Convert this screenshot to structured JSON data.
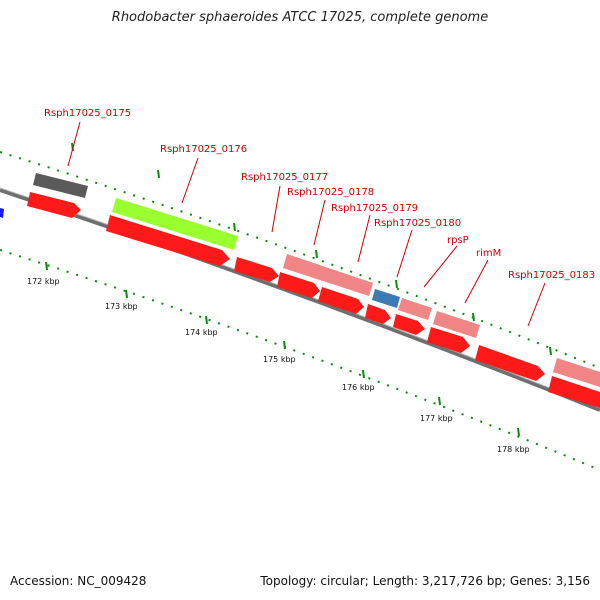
{
  "title": "Rhodobacter sphaeroides ATCC 17025, complete genome",
  "footer": {
    "accession": "Accession: NC_009428",
    "summary": "Topology: circular; Length: 3,217,726 bp; Genes: 3,156"
  },
  "colors": {
    "cds": "#ff1a1a",
    "trna": "#f08585",
    "rrna_like": "#9aff2e",
    "pseudo": "#666666",
    "misc": "#3d7ab5",
    "backbone": "#808080",
    "tick": "#0a8a0a",
    "label": "#cc0000"
  },
  "genes": [
    {
      "name": "Rsph17025_0175"
    },
    {
      "name": "Rsph17025_0176"
    },
    {
      "name": "Rsph17025_0177"
    },
    {
      "name": "Rsph17025_0178"
    },
    {
      "name": "Rsph17025_0179"
    },
    {
      "name": "Rsph17025_0180"
    },
    {
      "name": "rpsP"
    },
    {
      "name": "rimM"
    },
    {
      "name": "Rsph17025_0183"
    }
  ],
  "kbp_ticks": [
    "172 kbp",
    "173 kbp",
    "174 kbp",
    "175 kbp",
    "176 kbp",
    "177 kbp",
    "178 kbp"
  ]
}
